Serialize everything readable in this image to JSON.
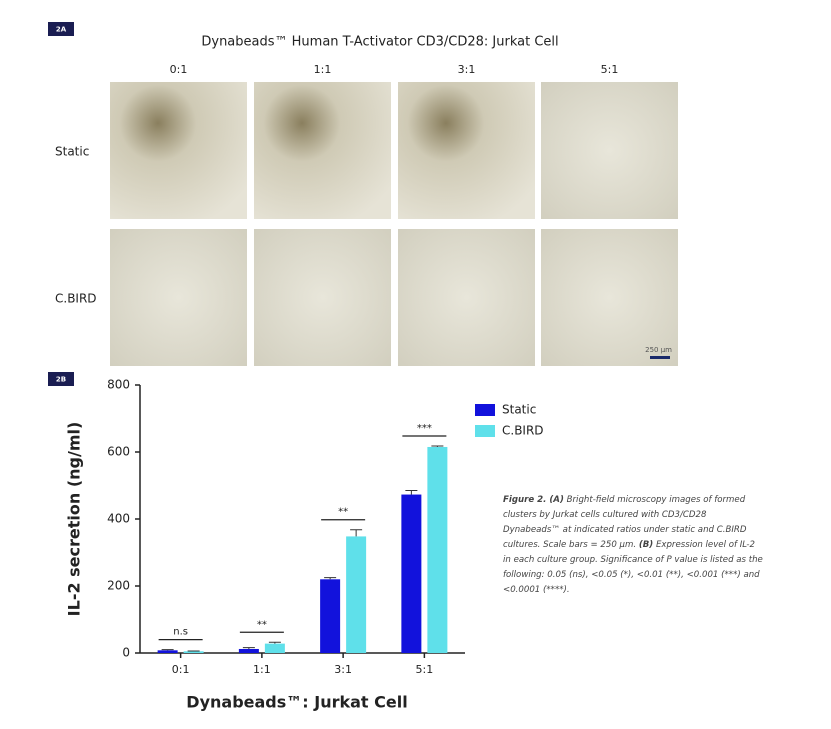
{
  "panel_a": {
    "label": "2A",
    "title": "Dynabeads™ Human T-Activator CD3/CD28: Jurkat Cell",
    "columns": [
      "0:1",
      "1:1",
      "3:1",
      "5:1"
    ],
    "rows": [
      "Static",
      "C.BIRD"
    ],
    "scale_bar": "250 μm"
  },
  "panel_b_label": "2B",
  "chart_data": {
    "type": "bar",
    "categories": [
      "0:1",
      "1:1",
      "3:1",
      "5:1"
    ],
    "series": [
      {
        "name": "Static",
        "color": "#1212dc",
        "values": [
          8,
          12,
          220,
          473
        ],
        "errors": [
          2,
          4,
          5,
          12
        ]
      },
      {
        "name": "C.BIRD",
        "color": "#5fe0ea",
        "values": [
          5,
          28,
          348,
          615
        ],
        "errors": [
          1,
          4,
          20,
          3
        ]
      }
    ],
    "annotations": [
      "n.s",
      "**",
      "**",
      "***"
    ],
    "ylim": [
      0,
      800
    ],
    "yticks": [
      0,
      200,
      400,
      600,
      800
    ],
    "ylabel": "IL-2 secretion (ng/ml)",
    "xlabel": "Dynabeads™: Jurkat Cell"
  },
  "caption": [
    {
      "text": "Figure 2. (A)",
      "bold": true
    },
    {
      "text": " Bright-field microscopy images of formed clusters by Jurkat cells cultured with CD3/CD28 Dynabeads™ at indicated ratios under static and C.BIRD cultures. Scale bars = 250 μm. ",
      "bold": false
    },
    {
      "text": "(B)",
      "bold": true
    },
    {
      "text": " Expression level of IL-2 in each culture group. Significance of P value is listed as the following: 0.05 (ns), <0.05 (*), <0.01 (**), <0.001 (***) and <0.0001 (****).",
      "bold": false
    }
  ]
}
